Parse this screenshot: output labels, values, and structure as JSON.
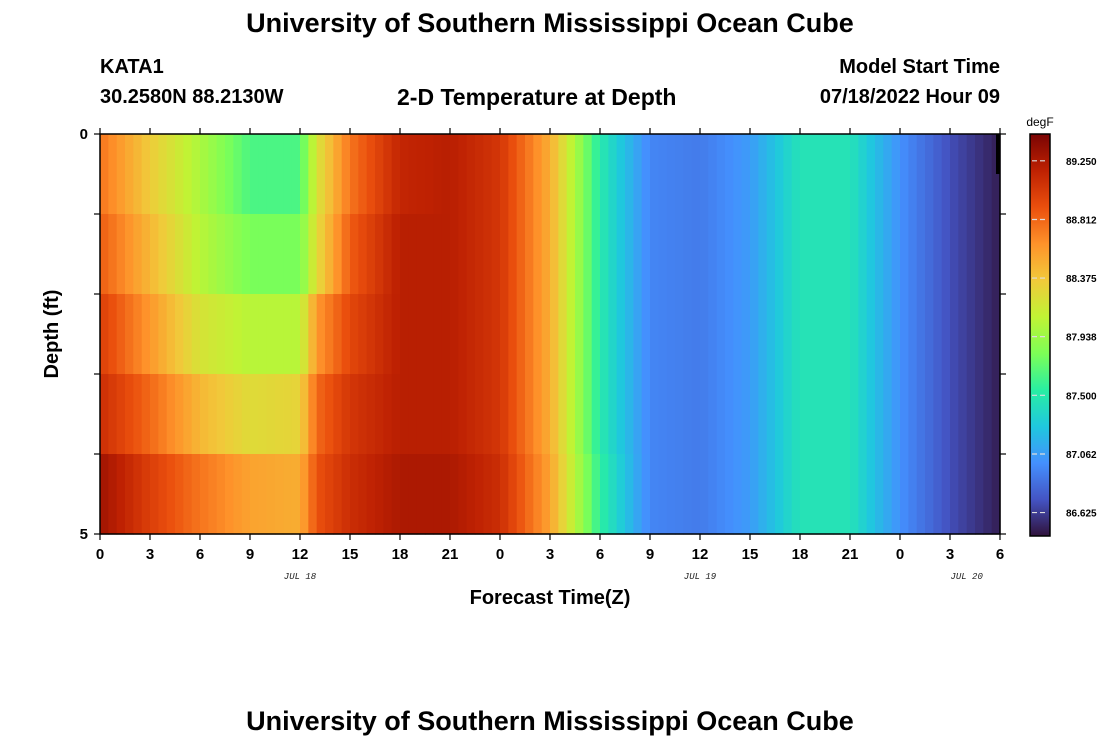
{
  "header": {
    "title": "University of Southern Mississippi Ocean Cube",
    "station": "KATA1",
    "coords": "30.2580N  88.2130W",
    "subtitle": "2-D Temperature at Depth",
    "start_label": "Model Start Time",
    "start_value": "07/18/2022 Hour 09"
  },
  "footer": {
    "title": "University of Southern Mississippi Ocean Cube"
  },
  "chart_data": {
    "type": "heatmap",
    "title": "2-D Temperature at Depth",
    "xlabel": "Forecast Time(Z)",
    "ylabel": "Depth (ft)",
    "x_ticks": [
      "0",
      "3",
      "6",
      "9",
      "12",
      "15",
      "18",
      "21",
      "0",
      "3",
      "6",
      "9",
      "12",
      "15",
      "18",
      "21",
      "0",
      "3",
      "6"
    ],
    "x_range_hours": [
      0,
      54
    ],
    "date_labels": [
      {
        "label": "JUL 18",
        "hour": 12
      },
      {
        "label": "JUL 19",
        "hour": 36
      },
      {
        "label": "JUL 20",
        "hour": 52
      }
    ],
    "y_ticks": [
      "0",
      "5"
    ],
    "ylim": [
      0,
      5
    ],
    "y_reversed": true,
    "depth_layers": [
      0,
      1,
      2,
      3,
      4
    ],
    "colorbar": {
      "unit": "degF",
      "ticks": [
        "89.250",
        "88.812",
        "88.375",
        "87.938",
        "87.500",
        "87.062",
        "86.625"
      ],
      "range": [
        86.45,
        89.45
      ],
      "colors": [
        "#30123b",
        "#4454c4",
        "#4490fe",
        "#1fc8de",
        "#29efa2",
        "#7dff56",
        "#c1f334",
        "#f1ca3a",
        "#fe922a",
        "#ea4f0d",
        "#be2102",
        "#7a0403"
      ]
    },
    "time_hours": [
      0,
      3,
      6,
      9,
      12,
      13,
      15,
      18,
      21,
      24,
      27,
      30,
      33,
      36,
      39,
      42,
      45,
      48,
      51,
      54
    ],
    "rows": [
      [
        88.75,
        88.35,
        88.0,
        87.65,
        87.65,
        88.2,
        88.75,
        89.15,
        89.2,
        89.05,
        88.5,
        87.5,
        86.95,
        86.9,
        87.05,
        87.45,
        87.45,
        87.0,
        86.7,
        86.5
      ],
      [
        88.85,
        88.45,
        88.05,
        87.8,
        87.8,
        88.25,
        88.85,
        89.2,
        89.2,
        89.05,
        88.5,
        87.5,
        86.95,
        86.9,
        87.05,
        87.45,
        87.45,
        87.0,
        86.7,
        86.5
      ],
      [
        89.0,
        88.6,
        88.2,
        88.05,
        88.05,
        88.6,
        88.95,
        89.2,
        89.2,
        89.05,
        88.5,
        87.5,
        86.95,
        86.9,
        87.05,
        87.45,
        87.45,
        87.0,
        86.7,
        86.5
      ],
      [
        89.1,
        88.8,
        88.45,
        88.25,
        88.3,
        88.8,
        89.05,
        89.2,
        89.2,
        89.05,
        88.5,
        87.5,
        86.95,
        86.9,
        87.05,
        87.45,
        87.45,
        87.0,
        86.7,
        86.5
      ],
      [
        89.3,
        89.0,
        88.75,
        88.55,
        88.5,
        88.9,
        89.1,
        89.25,
        89.25,
        89.1,
        88.55,
        87.55,
        86.95,
        86.9,
        87.05,
        87.45,
        87.45,
        87.0,
        86.7,
        86.5
      ]
    ]
  }
}
